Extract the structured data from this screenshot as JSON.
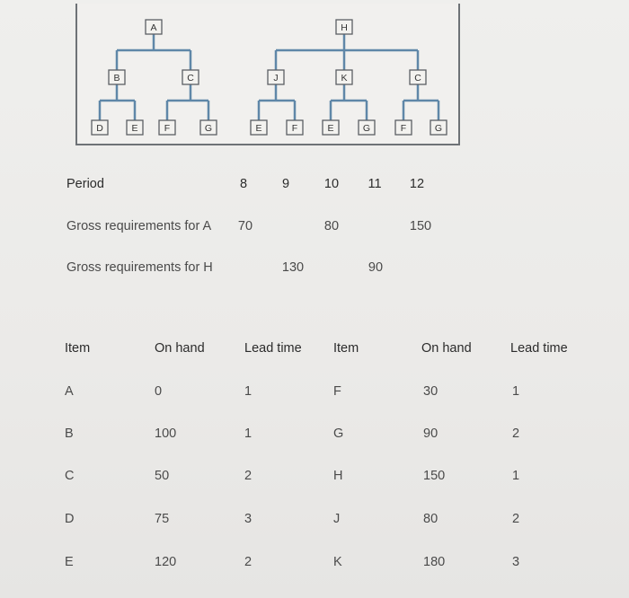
{
  "product_structure": {
    "tree_A": {
      "root": "A",
      "children": [
        {
          "label": "B",
          "children": [
            "D",
            "E"
          ]
        },
        {
          "label": "C",
          "children": [
            "F",
            "G"
          ]
        }
      ]
    },
    "tree_H": {
      "root": "H",
      "children": [
        {
          "label": "J",
          "children": [
            "E",
            "F"
          ]
        },
        {
          "label": "K",
          "children": [
            "E",
            "G"
          ]
        },
        {
          "label": "C",
          "children": [
            "F",
            "G"
          ]
        }
      ]
    }
  },
  "schedule": {
    "period_label": "Period",
    "periods": [
      "8",
      "9",
      "10",
      "11",
      "12"
    ],
    "rows": [
      {
        "label": "Gross requirements for A",
        "values": [
          "70",
          "",
          "80",
          "",
          "150"
        ]
      },
      {
        "label": "Gross requirements for H",
        "values": [
          "",
          "130",
          "",
          "90",
          ""
        ]
      }
    ]
  },
  "inventory": {
    "headers": [
      "Item",
      "On hand",
      "Lead time",
      "Item",
      "On hand",
      "Lead time"
    ],
    "left": [
      {
        "item": "A",
        "on_hand": "0",
        "lead_time": "1"
      },
      {
        "item": "B",
        "on_hand": "100",
        "lead_time": "1"
      },
      {
        "item": "C",
        "on_hand": "50",
        "lead_time": "2"
      },
      {
        "item": "D",
        "on_hand": "75",
        "lead_time": "3"
      },
      {
        "item": "E",
        "on_hand": "120",
        "lead_time": "2"
      }
    ],
    "right": [
      {
        "item": "F",
        "on_hand": "30",
        "lead_time": "1"
      },
      {
        "item": "G",
        "on_hand": "90",
        "lead_time": "2"
      },
      {
        "item": "H",
        "on_hand": "150",
        "lead_time": "1"
      },
      {
        "item": "J",
        "on_hand": "80",
        "lead_time": "2"
      },
      {
        "item": "K",
        "on_hand": "180",
        "lead_time": "3"
      }
    ]
  }
}
